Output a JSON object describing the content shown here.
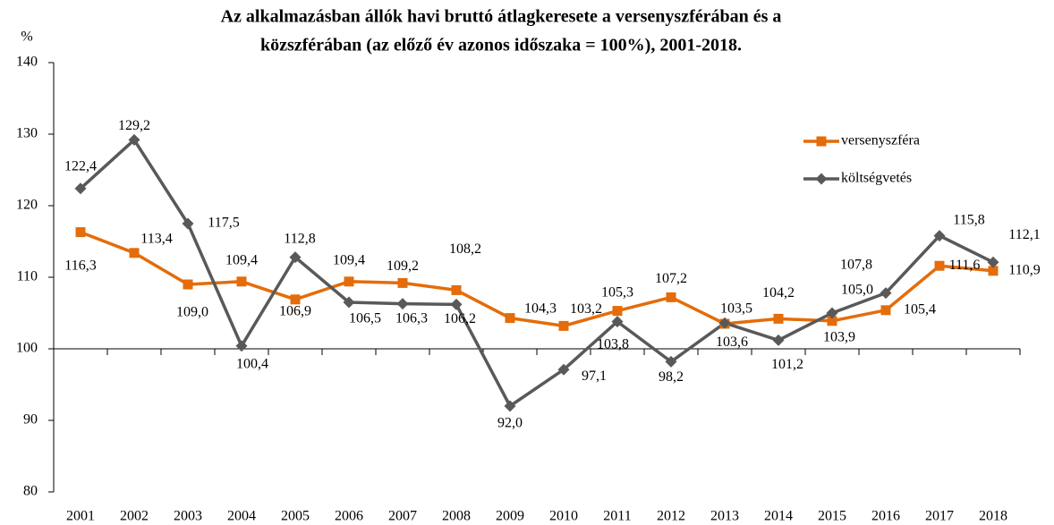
{
  "chart_data": {
    "type": "line",
    "title": [
      "Az alkalmazásban állók havi bruttó átlagkeresete a versenyszférában és a",
      "közszférában (az előző év azonos időszaka = 100%), 2001-2018."
    ],
    "y_label": "%",
    "categories": [
      "2001",
      "2002",
      "2003",
      "2004",
      "2005",
      "2006",
      "2007",
      "2008",
      "2009",
      "2010",
      "2011",
      "2012",
      "2013",
      "2014",
      "2015",
      "2016",
      "2017",
      "2018"
    ],
    "series": [
      {
        "name": "versenyszféra",
        "color": "#e46c0a",
        "marker": "square",
        "values": [
          116.3,
          113.4,
          109.0,
          109.4,
          106.9,
          109.4,
          109.2,
          108.2,
          104.3,
          103.2,
          105.3,
          107.2,
          103.5,
          104.2,
          103.9,
          105.4,
          111.6,
          110.9
        ],
        "value_labels": [
          "116,3",
          "113,4",
          "109,0",
          "109,4",
          "106,9",
          "109,4",
          "109,2",
          "108,2",
          "104,3",
          "103,2",
          "105,3",
          "107,2",
          "103,5",
          "104,2",
          "103,9",
          "105,4",
          "111,6",
          "110,9"
        ]
      },
      {
        "name": "költségvetés",
        "color": "#595959",
        "marker": "diamond",
        "values": [
          122.4,
          129.2,
          117.5,
          100.4,
          112.8,
          106.5,
          106.3,
          106.2,
          92.0,
          97.1,
          103.8,
          98.2,
          103.6,
          101.2,
          105.0,
          107.8,
          115.8,
          112.1
        ],
        "value_labels": [
          "122,4",
          "129,2",
          "117,5",
          "100,4",
          "112,8",
          "106,5",
          "106,3",
          "106,2",
          "92,0",
          "97,1",
          "103,8",
          "98,2",
          "103,6",
          "101,2",
          "105,0",
          "107,8",
          "115,8",
          "112,1"
        ]
      }
    ],
    "ylim": [
      80,
      140
    ],
    "yticks": [
      80,
      90,
      100,
      110,
      120,
      130,
      140
    ],
    "x_axis_crosses": 100,
    "grid": false,
    "legend": "upper right"
  }
}
